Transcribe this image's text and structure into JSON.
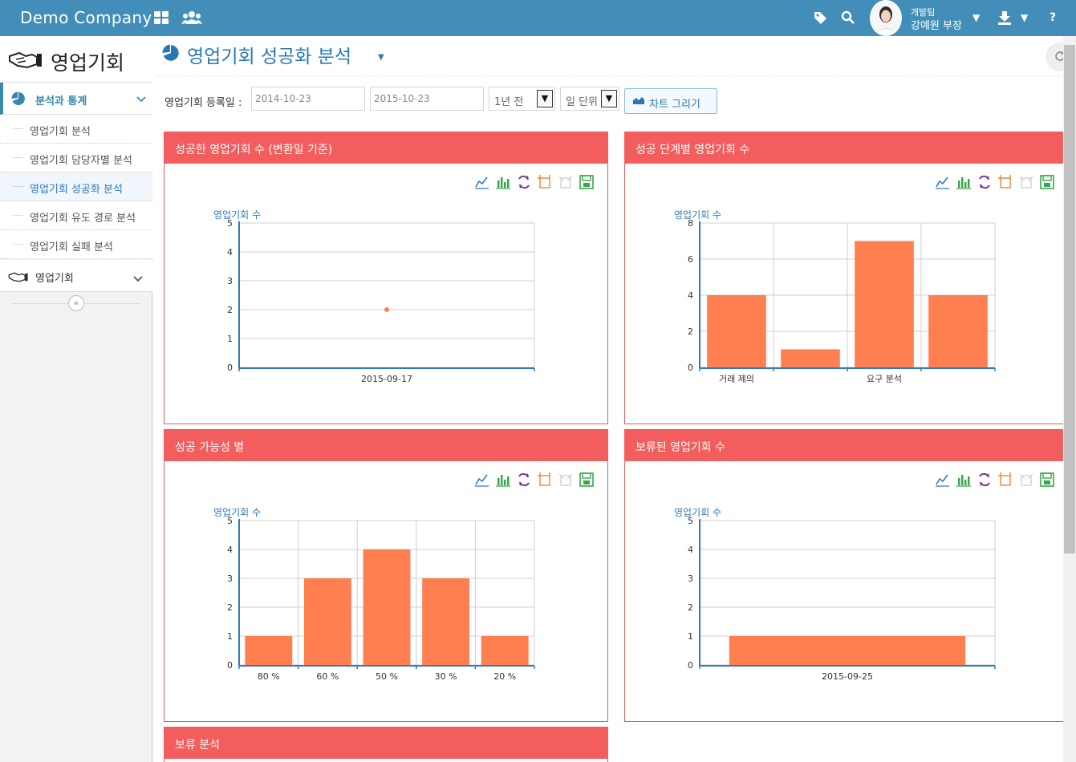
{
  "topbar": {
    "brand": "Demo Company",
    "user": {
      "team": "개발팀",
      "name": "강예원 부장"
    },
    "icons": [
      "grid-icon",
      "users-icon",
      "tags-icon",
      "search-icon",
      "download-icon",
      "help-icon"
    ]
  },
  "sidebar": {
    "title": "영업기회",
    "group_label": "분석과 통계",
    "items": [
      {
        "label": "영업기회 분석",
        "active": false
      },
      {
        "label": "영업기회 담당자별 분석",
        "active": false
      },
      {
        "label": "영업기회 성공화 분석",
        "active": true
      },
      {
        "label": "영업기회 유도 경로 분석",
        "active": false
      },
      {
        "label": "영업기회 실패 분석",
        "active": false
      }
    ],
    "menu2_label": "영업기회",
    "collapse_icon": "«"
  },
  "page": {
    "title": "영업기회 성공화 분석"
  },
  "filter": {
    "label": "영업기회 등록일 :",
    "date_from": "2014-10-23",
    "date_to": "2015-10-23",
    "period": "1년 전",
    "unit": "일 단위",
    "draw_button": "차트 그리기"
  },
  "colors": {
    "brand": "#438eb9",
    "panel_header": "#f25e5e",
    "bar": "#ff7f50",
    "accent": "#2679b5"
  },
  "panels": [
    {
      "title": "성공한 영업기회 수 (변환일 기준)",
      "ylabel": "영업기회 수"
    },
    {
      "title": "성공 단계별 영업기회 수",
      "ylabel": "영업기회 수"
    },
    {
      "title": "성공 가능성 별",
      "ylabel": "영업기회 수"
    },
    {
      "title": "보류된 영업기회 수",
      "ylabel": "영업기회 수"
    },
    {
      "title": "보류 분석"
    }
  ],
  "chart_data": [
    {
      "type": "scatter",
      "categories": [
        "2015-09-17"
      ],
      "values": [
        2
      ],
      "ylabel": "영업기회 수",
      "ylim": [
        0,
        5
      ],
      "yticks": [
        0,
        1,
        2,
        3,
        4,
        5
      ],
      "grid": true
    },
    {
      "type": "bar",
      "categories": [
        "거래 제의",
        "",
        "요구 분석",
        ""
      ],
      "values": [
        4,
        1,
        7,
        4
      ],
      "ylabel": "영업기회 수",
      "ylim": [
        0,
        8
      ],
      "yticks": [
        0,
        2,
        4,
        6,
        8
      ],
      "grid": true
    },
    {
      "type": "bar",
      "categories": [
        "80 %",
        "60 %",
        "50 %",
        "30 %",
        "20 %"
      ],
      "values": [
        1,
        3,
        4,
        3,
        1
      ],
      "ylabel": "영업기회 수",
      "ylim": [
        0,
        5
      ],
      "yticks": [
        0,
        1,
        2,
        3,
        4,
        5
      ],
      "grid": true
    },
    {
      "type": "bar",
      "categories": [
        "2015-09-25"
      ],
      "values": [
        1
      ],
      "ylabel": "영업기회 수",
      "ylim": [
        0,
        5
      ],
      "yticks": [
        0,
        1,
        2,
        3,
        4,
        5
      ],
      "grid": true
    }
  ]
}
